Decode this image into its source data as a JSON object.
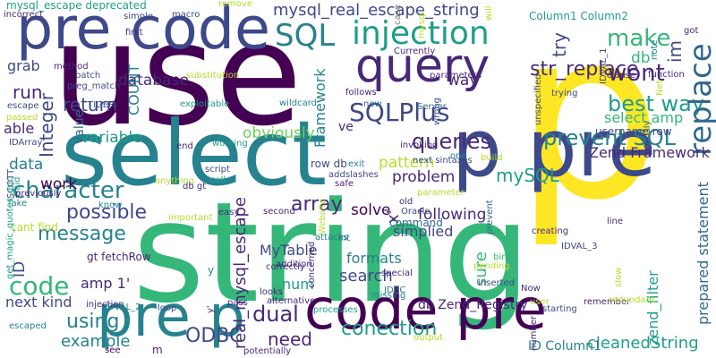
{
  "palette": {
    "purple": "#440154",
    "indigo": "#482878",
    "blue": "#3e4989",
    "slate": "#31688e",
    "teal": "#26828e",
    "sea": "#1f9e89",
    "green": "#35b779",
    "lime": "#6ece58",
    "yellowgreen": "#b5de2b",
    "yellow": "#fde725",
    "muted": "#7f7f7f"
  },
  "words": [
    {
      "text": "use",
      "c": "purple"
    },
    {
      "text": "p",
      "c": "yellow"
    },
    {
      "text": "select",
      "c": "teal"
    },
    {
      "text": "string",
      "c": "green"
    },
    {
      "text": "p pre",
      "c": "blue"
    },
    {
      "text": "pre code",
      "c": "blue"
    },
    {
      "text": "query",
      "c": "indigo"
    },
    {
      "text": "code pre",
      "c": "purple"
    },
    {
      "text": "pre p",
      "c": "teal"
    },
    {
      "text": "mysql_real_escape_string",
      "c": "blue"
    },
    {
      "text": "SQL",
      "c": "teal"
    },
    {
      "text": "injection",
      "c": "sea"
    },
    {
      "text": "str_replace",
      "c": "indigo"
    },
    {
      "text": "make",
      "c": "green"
    },
    {
      "text": "db'",
      "c": "green"
    },
    {
      "text": "im",
      "c": "blue"
    },
    {
      "text": "wont",
      "c": "indigo"
    },
    {
      "text": "try",
      "c": "blue"
    },
    {
      "text": "SQLPlus",
      "c": "blue"
    },
    {
      "text": "best way",
      "c": "sea"
    },
    {
      "text": "prevent SQL",
      "c": "teal"
    },
    {
      "text": "queries",
      "c": "indigo"
    },
    {
      "text": "Integer",
      "c": "blue"
    },
    {
      "text": "return",
      "c": "blue"
    },
    {
      "text": "database",
      "c": "indigo"
    },
    {
      "text": "grab",
      "c": "blue"
    },
    {
      "text": "run",
      "c": "indigo"
    },
    {
      "text": "able",
      "c": "indigo"
    },
    {
      "text": "variable",
      "c": "sea"
    },
    {
      "text": "obviously",
      "c": "lime"
    },
    {
      "text": "character",
      "c": "teal"
    },
    {
      "text": "array",
      "c": "indigo"
    },
    {
      "text": "possible",
      "c": "blue"
    },
    {
      "text": "message",
      "c": "teal"
    },
    {
      "text": "code",
      "c": "green"
    },
    {
      "text": "MyTable",
      "c": "blue"
    },
    {
      "text": "x'",
      "c": "indigo"
    },
    {
      "text": "dual",
      "c": "indigo"
    },
    {
      "text": "using",
      "c": "teal"
    },
    {
      "text": "example",
      "c": "teal"
    },
    {
      "text": "need",
      "c": "indigo"
    },
    {
      "text": "conection",
      "c": "sea"
    },
    {
      "text": "cleanedString",
      "c": "sea"
    },
    {
      "text": "replace",
      "c": "slate"
    },
    {
      "text": "prepared statement",
      "c": "slate"
    },
    {
      "text": "zend_filter",
      "c": "sea"
    },
    {
      "text": "sure",
      "c": "green"
    },
    {
      "text": "search",
      "c": "blue"
    },
    {
      "text": "formats",
      "c": "teal"
    },
    {
      "text": "real_mysql_escape",
      "c": "indigo"
    },
    {
      "text": "amp 1'",
      "c": "indigo"
    },
    {
      "text": "pattern",
      "c": "yellowgreen"
    },
    {
      "text": "problem",
      "c": "indigo"
    },
    {
      "text": "mySQL",
      "c": "sea"
    },
    {
      "text": "solve",
      "c": "purple"
    },
    {
      "text": "following",
      "c": "indigo"
    },
    {
      "text": "simplied",
      "c": "blue"
    },
    {
      "text": "data",
      "c": "teal"
    },
    {
      "text": "work",
      "c": "purple"
    },
    {
      "text": "ID",
      "c": "blue"
    },
    {
      "text": "Zend Framework",
      "c": "indigo"
    },
    {
      "text": "select amp",
      "c": "green"
    },
    {
      "text": "way",
      "c": "indigo"
    },
    {
      "text": "COUNT",
      "c": "teal"
    },
    {
      "text": "Framework",
      "c": "teal"
    },
    {
      "text": "value",
      "c": "slate"
    },
    {
      "text": "num",
      "c": "sea"
    },
    {
      "text": "next kind",
      "c": "blue"
    },
    {
      "text": "db Zend_Registry",
      "c": "indigo"
    },
    {
      "text": "ID Column1",
      "c": "teal"
    },
    {
      "text": "mysql_escape deprecated",
      "c": "sea"
    },
    {
      "text": "incorrect",
      "c": "indigo"
    },
    {
      "text": "macro",
      "c": "blue"
    },
    {
      "text": "remove",
      "c": "yellowgreen"
    },
    {
      "text": "Column1 Column2",
      "c": "sea"
    },
    {
      "text": "got",
      "c": "indigo"
    },
    {
      "text": "simple",
      "c": "blue"
    },
    {
      "text": "first",
      "c": "indigo"
    },
    {
      "text": "method",
      "c": "indigo"
    },
    {
      "text": "batch",
      "c": "blue"
    },
    {
      "text": "preg_match",
      "c": "blue"
    },
    {
      "text": "substitution",
      "c": "yellowgreen"
    },
    {
      "text": "parameters",
      "c": "indigo"
    },
    {
      "text": "Currently",
      "c": "indigo"
    },
    {
      "text": "case",
      "c": "muted"
    },
    {
      "text": "will",
      "c": "yellowgreen"
    },
    {
      "text": "mysql",
      "c": "yellowgreen"
    },
    {
      "text": "note",
      "c": "teal"
    },
    {
      "text": "function",
      "c": "indigo"
    },
    {
      "text": "clause",
      "c": "indigo"
    },
    {
      "text": "trying",
      "c": "blue"
    },
    {
      "text": "IDVAL_1",
      "c": "blue"
    },
    {
      "text": "Net",
      "c": "yellowgreen"
    },
    {
      "text": "escape",
      "c": "blue"
    },
    {
      "text": "TIGER",
      "c": "blue"
    },
    {
      "text": "passed",
      "c": "yellowgreen"
    },
    {
      "text": "IDArray",
      "c": "blue"
    },
    {
      "text": "exploitable",
      "c": "sea"
    },
    {
      "text": "wildcard",
      "c": "teal"
    },
    {
      "text": "follows",
      "c": "indigo"
    },
    {
      "text": "new",
      "c": "slate"
    },
    {
      "text": "exit",
      "c": "teal"
    },
    {
      "text": "next sintaxes",
      "c": "blue"
    },
    {
      "text": "Server",
      "c": "slate"
    },
    {
      "text": "wrong",
      "c": "blue"
    },
    {
      "text": "unspecified",
      "c": "blue"
    },
    {
      "text": "thusly",
      "c": "slate"
    },
    {
      "text": "username row",
      "c": "blue"
    },
    {
      "text": "end",
      "c": "indigo"
    },
    {
      "text": "working",
      "c": "sea"
    },
    {
      "text": "invoking",
      "c": "indigo"
    },
    {
      "text": "one",
      "c": "teal"
    },
    {
      "text": "build",
      "c": "yellowgreen"
    },
    {
      "text": "row db",
      "c": "blue"
    },
    {
      "text": "addslashes",
      "c": "blue"
    },
    {
      "text": "SCOTT",
      "c": "blue"
    },
    {
      "text": "said",
      "c": "sea"
    },
    {
      "text": "script",
      "c": "blue"
    },
    {
      "text": "safe",
      "c": "indigo"
    },
    {
      "text": "parameter",
      "c": "yellowgreen"
    },
    {
      "text": "previously",
      "c": "indigo"
    },
    {
      "text": "anything",
      "c": "yellowgreen"
    },
    {
      "text": "call",
      "c": "sea"
    },
    {
      "text": "Take",
      "c": "teal"
    },
    {
      "text": "know",
      "c": "teal"
    },
    {
      "text": "db gt",
      "c": "indigo"
    },
    {
      "text": "easy",
      "c": "indigo"
    },
    {
      "text": "old",
      "c": "indigo"
    },
    {
      "text": "Oracle",
      "c": "blue"
    },
    {
      "text": "command",
      "c": "slate"
    },
    {
      "text": "line",
      "c": "indigo"
    },
    {
      "text": "cant find",
      "c": "yellowgreen"
    },
    {
      "text": "important",
      "c": "yellowgreen"
    },
    {
      "text": "second",
      "c": "indigo"
    },
    {
      "text": "get_magic_quotes_gpc",
      "c": "sea"
    },
    {
      "text": "Website",
      "c": "yellowgreen"
    },
    {
      "text": "prevent",
      "c": "slate"
    },
    {
      "text": "creating",
      "c": "indigo"
    },
    {
      "text": "IDVAL_3",
      "c": "blue"
    },
    {
      "text": "bind",
      "c": "green"
    },
    {
      "text": "pending",
      "c": "yellowgreen"
    },
    {
      "text": "attacks",
      "c": "teal"
    },
    {
      "text": "int",
      "c": "slate"
    },
    {
      "text": "correctly",
      "c": "indigo"
    },
    {
      "text": "gt fetchRow",
      "c": "indigo"
    },
    {
      "text": "addition",
      "c": "indigo"
    },
    {
      "text": "special",
      "c": "indigo"
    },
    {
      "text": "JDBC",
      "c": "teal"
    },
    {
      "text": "inserted",
      "c": "blue"
    },
    {
      "text": "looks",
      "c": "indigo"
    },
    {
      "text": "concerned",
      "c": "indigo"
    },
    {
      "text": "missing",
      "c": "teal"
    },
    {
      "text": "Now",
      "c": "indigo"
    },
    {
      "text": "user",
      "c": "yellowgreen"
    },
    {
      "text": "starting",
      "c": "blue"
    },
    {
      "text": "remember",
      "c": "indigo"
    },
    {
      "text": "redundant",
      "c": "yellowgreen"
    },
    {
      "text": "slow",
      "c": "yellowgreen"
    },
    {
      "text": "injection",
      "c": "indigo"
    },
    {
      "text": "IDVAL_2",
      "c": "teal"
    },
    {
      "text": "loop",
      "c": "blue"
    },
    {
      "text": "pass",
      "c": "indigo"
    },
    {
      "text": "alternative",
      "c": "indigo"
    },
    {
      "text": "processes",
      "c": "sea"
    },
    {
      "text": "escaped",
      "c": "teal"
    },
    {
      "text": "see",
      "c": "purple"
    },
    {
      "text": "m",
      "c": "indigo"
    },
    {
      "text": "ODBC",
      "c": "blue"
    },
    {
      "text": "potentially",
      "c": "indigo"
    },
    {
      "text": "output",
      "c": "yellowgreen"
    },
    {
      "text": "number",
      "c": "indigo"
    },
    {
      "text": "y'",
      "c": "indigo"
    },
    {
      "text": "y",
      "c": "teal"
    },
    {
      "text": "ve",
      "c": "indigo"
    }
  ]
}
